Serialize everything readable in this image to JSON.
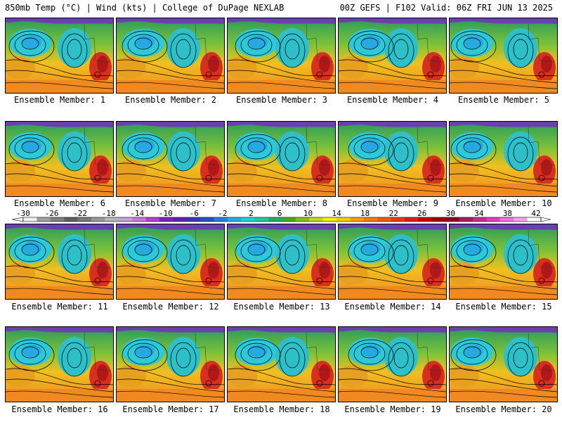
{
  "header": {
    "left": "850mb Temp (°C) | Wind (kts) | College of DuPage NEXLAB",
    "right": "00Z GEFS | F102 Valid: 06Z FRI JUN 13 2025"
  },
  "panels": [
    {
      "label": "Ensemble Member: 1"
    },
    {
      "label": "Ensemble Member: 2"
    },
    {
      "label": "Ensemble Member: 3"
    },
    {
      "label": "Ensemble Member: 4"
    },
    {
      "label": "Ensemble Member: 5"
    },
    {
      "label": "Ensemble Member: 6"
    },
    {
      "label": "Ensemble Member: 7"
    },
    {
      "label": "Ensemble Member: 8"
    },
    {
      "label": "Ensemble Member: 9"
    },
    {
      "label": "Ensemble Member: 10"
    },
    {
      "label": "Ensemble Member: 11"
    },
    {
      "label": "Ensemble Member: 12"
    },
    {
      "label": "Ensemble Member: 13"
    },
    {
      "label": "Ensemble Member: 14"
    },
    {
      "label": "Ensemble Member: 15"
    },
    {
      "label": "Ensemble Member: 16"
    },
    {
      "label": "Ensemble Member: 17"
    },
    {
      "label": "Ensemble Member: 18"
    },
    {
      "label": "Ensemble Member: 19"
    },
    {
      "label": "Ensemble Member: 20"
    }
  ],
  "colorbar": {
    "ticks": [
      "-30",
      "-26",
      "-22",
      "-18",
      "-14",
      "-10",
      "-6",
      "-2",
      "2",
      "6",
      "10",
      "14",
      "18",
      "22",
      "26",
      "30",
      "34",
      "38",
      "42"
    ],
    "colors": [
      "#f0f0f0",
      "#a0a0a0",
      "#808080",
      "#606060",
      "#7a7a7a",
      "#9a9a9a",
      "#b8b8b8",
      "#c8a0d8",
      "#d070e0",
      "#b040d0",
      "#8020c0",
      "#6020b0",
      "#4030c0",
      "#2050d0",
      "#2080e0",
      "#20b0e8",
      "#20d0d0",
      "#20c8a0",
      "#20b060",
      "#40b020",
      "#80c020",
      "#c0d820",
      "#f0f000",
      "#f8c800",
      "#f8a000",
      "#f08000",
      "#e86000",
      "#e04000",
      "#d82020",
      "#c80000",
      "#a00000",
      "#900020",
      "#a02060",
      "#c03090",
      "#e040c0",
      "#f070e0",
      "#f8a0f0",
      "#ffffff"
    ]
  }
}
